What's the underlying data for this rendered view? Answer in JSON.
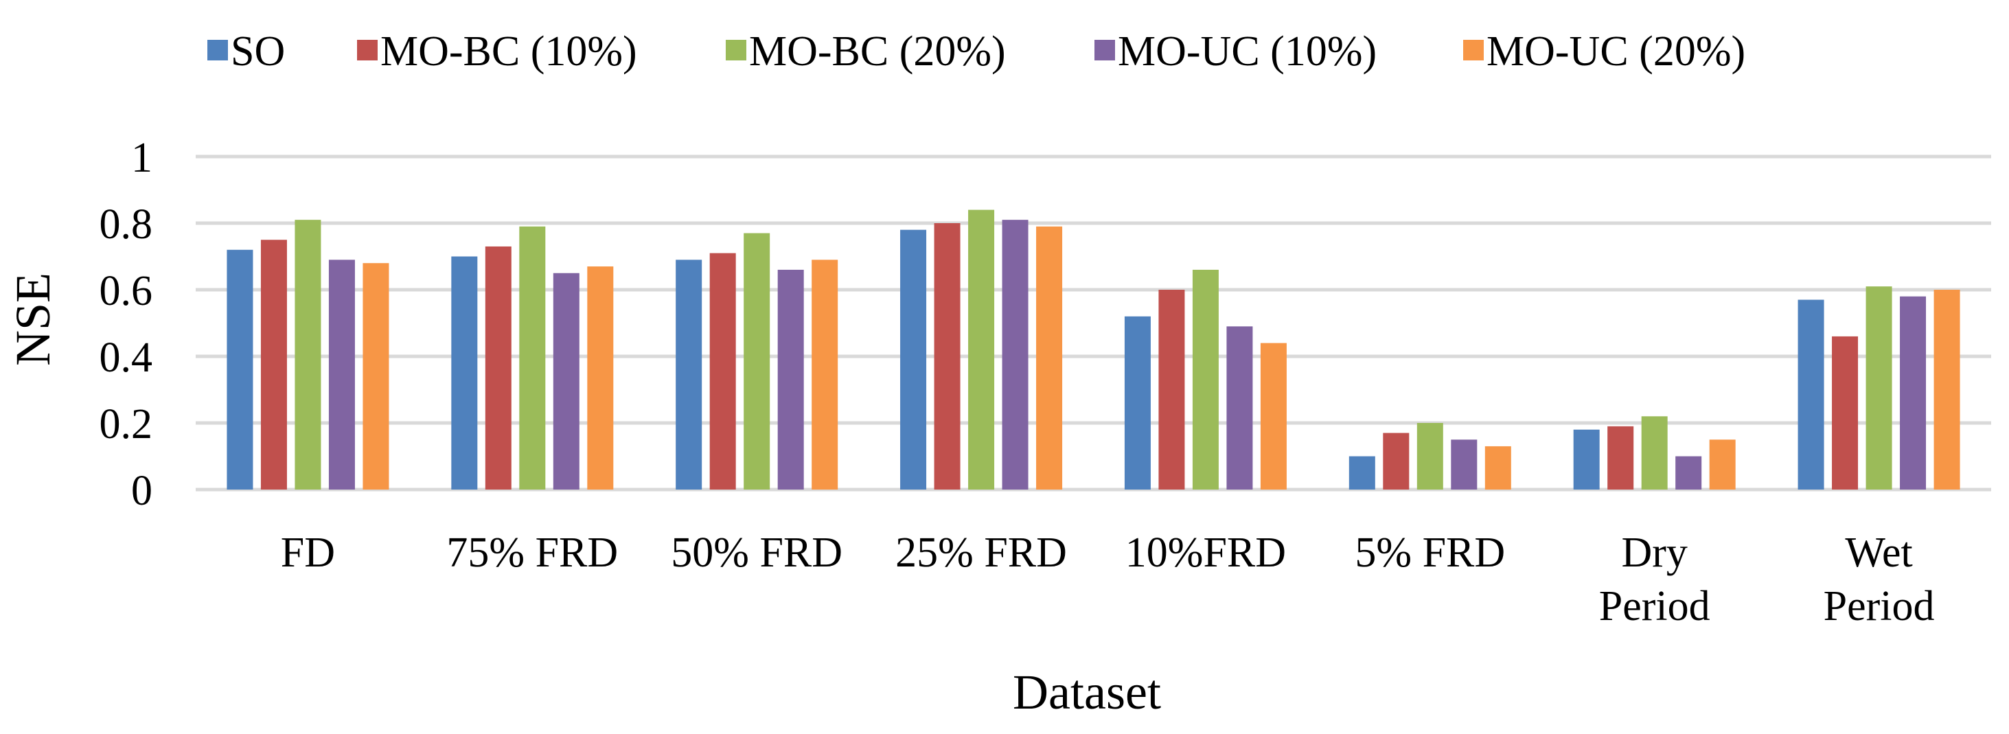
{
  "chart_data": {
    "type": "bar",
    "title": "",
    "xlabel": "Dataset",
    "ylabel": "NSE",
    "ylim": [
      0,
      1
    ],
    "yticks": [
      "0",
      "0.2",
      "0.4",
      "0.6",
      "0.8",
      "1"
    ],
    "ytick_values": [
      0,
      0.2,
      0.4,
      0.6,
      0.8,
      1
    ],
    "grid": true,
    "legend_position": "top",
    "categories": [
      [
        "FD"
      ],
      [
        "75% FRD"
      ],
      [
        "50% FRD"
      ],
      [
        "25% FRD"
      ],
      [
        "10%FRD"
      ],
      [
        "5% FRD"
      ],
      [
        "Dry",
        "Period"
      ],
      [
        "Wet",
        "Period"
      ]
    ],
    "series": [
      {
        "name": "SO",
        "color": "#4f81bd",
        "values": [
          0.72,
          0.7,
          0.69,
          0.78,
          0.52,
          0.1,
          0.18,
          0.57
        ]
      },
      {
        "name": "MO-BC (10%)",
        "color": "#c0504d",
        "values": [
          0.75,
          0.73,
          0.71,
          0.8,
          0.6,
          0.17,
          0.19,
          0.46
        ]
      },
      {
        "name": "MO-BC (20%)",
        "color": "#9bbb59",
        "values": [
          0.81,
          0.79,
          0.77,
          0.84,
          0.66,
          0.2,
          0.22,
          0.61
        ]
      },
      {
        "name": "MO-UC (10%)",
        "color": "#8064a2",
        "values": [
          0.69,
          0.65,
          0.66,
          0.81,
          0.49,
          0.15,
          0.1,
          0.58
        ]
      },
      {
        "name": "MO-UC (20%)",
        "color": "#f79646",
        "values": [
          0.68,
          0.67,
          0.69,
          0.79,
          0.44,
          0.13,
          0.15,
          0.6
        ]
      }
    ]
  }
}
